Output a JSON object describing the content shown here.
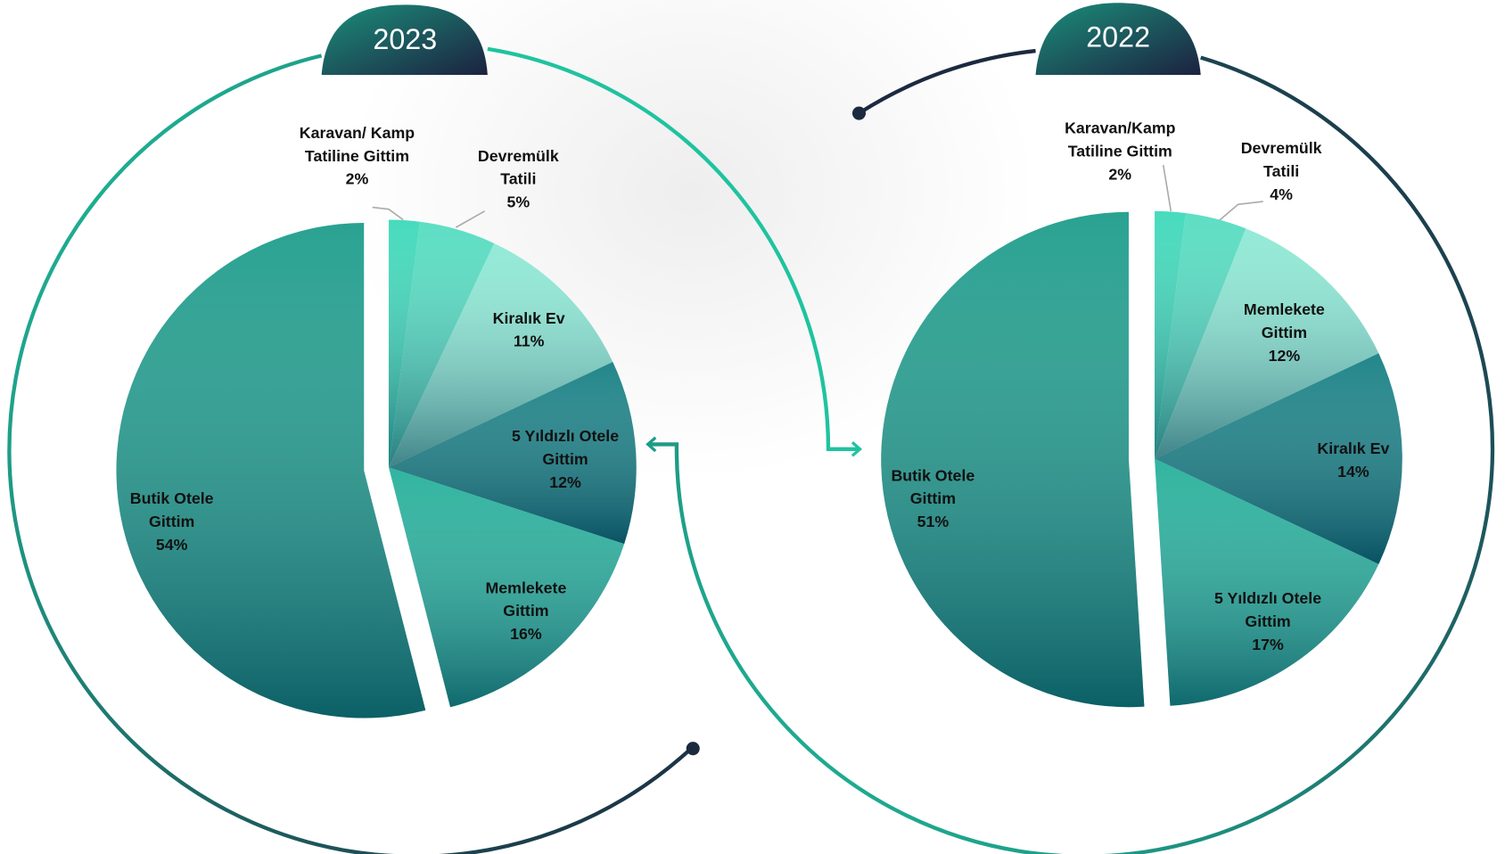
{
  "chart_data": [
    {
      "type": "pie",
      "title": "2023",
      "categories": [
        "Karavan/ Kamp Tatiline Gittim",
        "Devremülk Tatili",
        "Kiralık Ev",
        "5 Yıldızlı Otele Gittim",
        "Memlekete Gittim",
        "Butik Otele Gittim"
      ],
      "values": [
        2,
        5,
        11,
        12,
        16,
        54
      ],
      "value_labels": [
        "2%",
        "5%",
        "11%",
        "12%",
        "16%",
        "54%"
      ],
      "colors": [
        "#38d8b7",
        "#4fdcbf",
        "#8ae8d3",
        "#0f7c80",
        "#1fae98",
        "#179a88"
      ]
    },
    {
      "type": "pie",
      "title": "2022",
      "categories": [
        "Karavan/Kamp Tatiline Gittim",
        "Devremülk Tatili",
        "Memlekete Gittim",
        "Kiralık Ev",
        "5 Yıldızlı Otele Gittim",
        "Butik Otele Gittim"
      ],
      "values": [
        2,
        4,
        12,
        14,
        17,
        51
      ],
      "value_labels": [
        "2%",
        "4%",
        "12%",
        "14%",
        "17%",
        "51%"
      ],
      "colors": [
        "#38d8b7",
        "#4fdcbf",
        "#8ae8d3",
        "#0f7c80",
        "#1fae98",
        "#179a88"
      ]
    }
  ]
}
